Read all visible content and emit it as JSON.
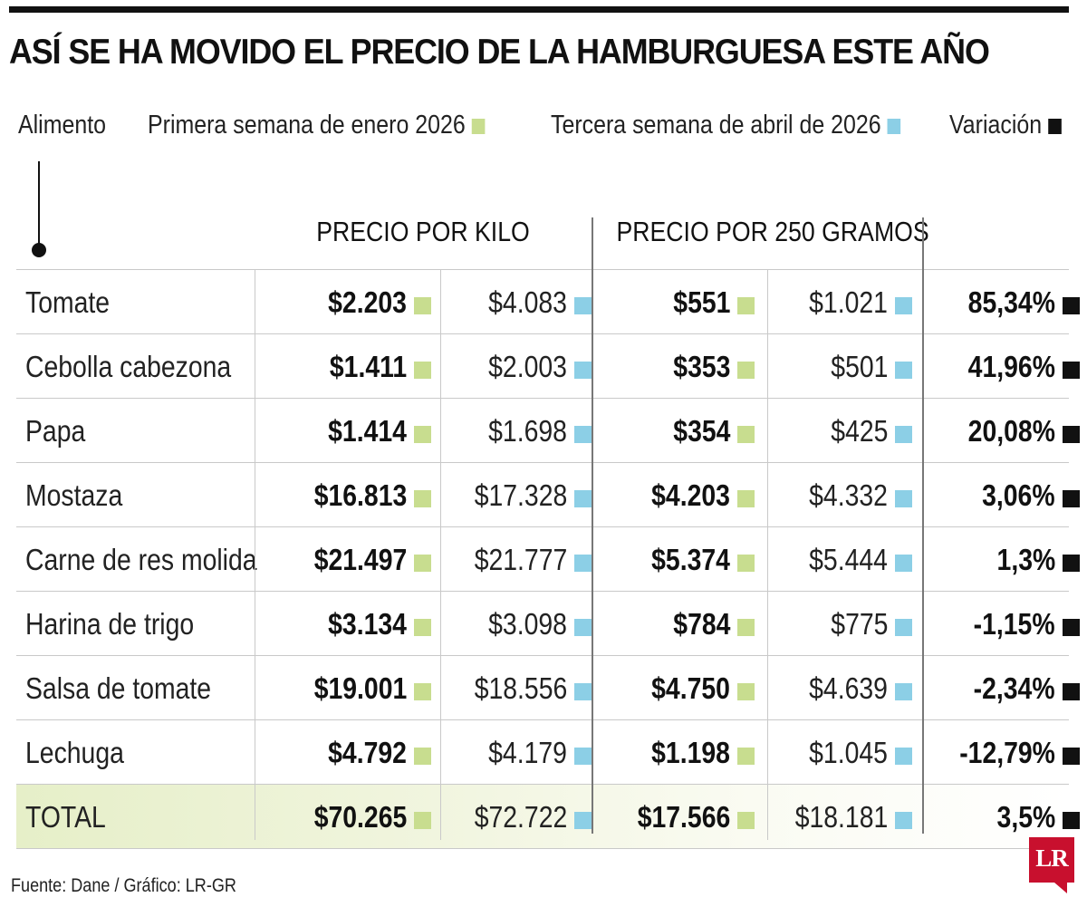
{
  "title": "ASÍ SE HA MOVIDO EL PRECIO DE LA HAMBURGUESA ESTE AÑO",
  "legend": {
    "alimento": "Alimento",
    "enero": "Primera semana de enero 2026",
    "abril": "Tercera semana de abril de 2026",
    "variacion": "Variación"
  },
  "headers": {
    "kilo": "PRECIO POR KILO",
    "gramos": "PRECIO POR 250 GRAMOS"
  },
  "colors": {
    "enero": "#c8dd8f",
    "abril": "#8ccfe6",
    "variacion": "#111111",
    "brand": "#c8102e"
  },
  "rows": [
    {
      "name": "Tomate",
      "kilo_ene": "$2.203",
      "kilo_abr": "$4.083",
      "g_ene": "$551",
      "g_abr": "$1.021",
      "var": "85,34%"
    },
    {
      "name": "Cebolla cabezona",
      "kilo_ene": "$1.411",
      "kilo_abr": "$2.003",
      "g_ene": "$353",
      "g_abr": "$501",
      "var": "41,96%"
    },
    {
      "name": "Papa",
      "kilo_ene": "$1.414",
      "kilo_abr": "$1.698",
      "g_ene": "$354",
      "g_abr": "$425",
      "var": "20,08%"
    },
    {
      "name": "Mostaza",
      "kilo_ene": "$16.813",
      "kilo_abr": "$17.328",
      "g_ene": "$4.203",
      "g_abr": "$4.332",
      "var": "3,06%"
    },
    {
      "name": "Carne de res molida",
      "kilo_ene": "$21.497",
      "kilo_abr": "$21.777",
      "g_ene": "$5.374",
      "g_abr": "$5.444",
      "var": "1,3%"
    },
    {
      "name": "Harina de trigo",
      "kilo_ene": "$3.134",
      "kilo_abr": "$3.098",
      "g_ene": "$784",
      "g_abr": "$775",
      "var": "-1,15%"
    },
    {
      "name": "Salsa de tomate",
      "kilo_ene": "$19.001",
      "kilo_abr": "$18.556",
      "g_ene": "$4.750",
      "g_abr": "$4.639",
      "var": "-2,34%"
    },
    {
      "name": "Lechuga",
      "kilo_ene": "$4.792",
      "kilo_abr": "$4.179",
      "g_ene": "$1.198",
      "g_abr": "$1.045",
      "var": "-12,79%"
    },
    {
      "name": "TOTAL",
      "kilo_ene": "$70.265",
      "kilo_abr": "$72.722",
      "g_ene": "$17.566",
      "g_abr": "$18.181",
      "var": "3,5%"
    }
  ],
  "footer": "Fuente: Dane / Gráfico: LR-GR",
  "logo": "LR"
}
